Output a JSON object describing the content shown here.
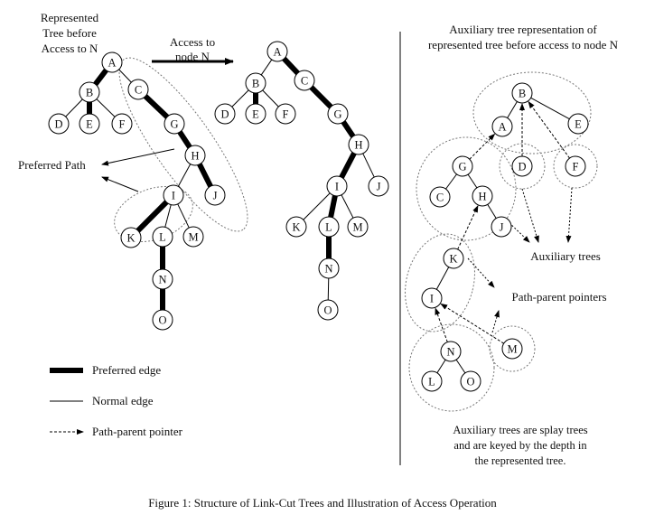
{
  "labels": {
    "represented_tree": [
      "Represented",
      "Tree before",
      "Access to N"
    ],
    "access_arrow": [
      "Access to",
      "node N"
    ],
    "aux_title": [
      "Auxiliary tree representation of",
      "represented tree before access to node N"
    ],
    "preferred_path": "Preferred Path",
    "auxiliary_trees": "Auxiliary trees",
    "path_parent_pointers": "Path-parent pointers",
    "aux_note": [
      "Auxiliary trees are splay trees",
      "and are keyed by the depth in",
      "the represented tree."
    ]
  },
  "legend": {
    "preferred_edge": "Preferred edge",
    "normal_edge": "Normal edge",
    "path_parent_pointer": "Path-parent pointer"
  },
  "caption": "Figure 1: Structure of Link-Cut Trees and Illustration of Access Operation",
  "trees": {
    "before": {
      "nodes": [
        "A",
        "B",
        "C",
        "D",
        "E",
        "F",
        "G",
        "H",
        "I",
        "J",
        "K",
        "L",
        "M",
        "N",
        "O"
      ],
      "edges": [
        [
          "A",
          "B",
          "preferred"
        ],
        [
          "A",
          "C",
          "normal"
        ],
        [
          "B",
          "D",
          "normal"
        ],
        [
          "B",
          "E",
          "preferred"
        ],
        [
          "B",
          "F",
          "normal"
        ],
        [
          "C",
          "G",
          "preferred"
        ],
        [
          "G",
          "H",
          "preferred"
        ],
        [
          "H",
          "I",
          "normal"
        ],
        [
          "H",
          "J",
          "preferred"
        ],
        [
          "I",
          "K",
          "preferred"
        ],
        [
          "I",
          "L",
          "normal"
        ],
        [
          "I",
          "M",
          "normal"
        ],
        [
          "L",
          "N",
          "preferred"
        ],
        [
          "N",
          "O",
          "preferred"
        ]
      ]
    },
    "after": {
      "nodes": [
        "A",
        "B",
        "C",
        "D",
        "E",
        "F",
        "G",
        "H",
        "I",
        "J",
        "K",
        "L",
        "M",
        "N",
        "O"
      ],
      "edges": [
        [
          "A",
          "B",
          "normal"
        ],
        [
          "A",
          "C",
          "preferred"
        ],
        [
          "B",
          "D",
          "normal"
        ],
        [
          "B",
          "E",
          "preferred"
        ],
        [
          "B",
          "F",
          "normal"
        ],
        [
          "C",
          "G",
          "preferred"
        ],
        [
          "G",
          "H",
          "preferred"
        ],
        [
          "H",
          "I",
          "preferred"
        ],
        [
          "H",
          "J",
          "normal"
        ],
        [
          "I",
          "K",
          "normal"
        ],
        [
          "I",
          "L",
          "preferred"
        ],
        [
          "I",
          "M",
          "normal"
        ],
        [
          "L",
          "N",
          "preferred"
        ],
        [
          "N",
          "O",
          "normal"
        ]
      ]
    },
    "auxiliary": {
      "nodes": [
        "B",
        "A",
        "E",
        "D",
        "F",
        "G",
        "C",
        "H",
        "J",
        "K",
        "I",
        "N",
        "L",
        "O",
        "M"
      ],
      "edges": [
        [
          "B",
          "A",
          "normal"
        ],
        [
          "B",
          "E",
          "normal"
        ],
        [
          "G",
          "C",
          "normal"
        ],
        [
          "G",
          "H",
          "normal"
        ],
        [
          "H",
          "J",
          "normal"
        ],
        [
          "K",
          "I",
          "normal"
        ],
        [
          "N",
          "L",
          "normal"
        ],
        [
          "N",
          "O",
          "normal"
        ]
      ],
      "pointers": [
        [
          "D",
          "B"
        ],
        [
          "F",
          "B"
        ],
        [
          "G",
          "A"
        ],
        [
          "K",
          "H"
        ],
        [
          "N",
          "I"
        ],
        [
          "M",
          "I"
        ]
      ]
    }
  }
}
